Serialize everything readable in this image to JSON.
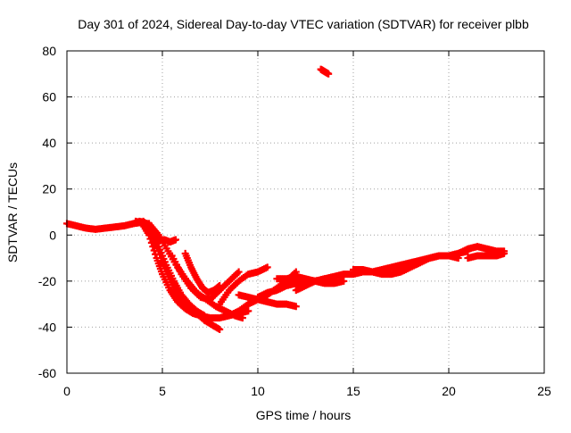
{
  "chart_data": {
    "type": "scatter",
    "title": "Day 301 of 2024, Sidereal Day-to-day VTEC variation (SDTVAR) for receiver plbb",
    "xlabel": "GPS time / hours",
    "ylabel": "SDTVAR / TECUs",
    "xlim": [
      0,
      25
    ],
    "ylim": [
      -60,
      80
    ],
    "xticks": [
      0,
      5,
      10,
      15,
      20,
      25
    ],
    "yticks": [
      -60,
      -40,
      -20,
      0,
      20,
      40,
      60,
      80
    ],
    "grid": true,
    "legend": "none",
    "marker": "plus",
    "color": "#ff0000",
    "series": [
      {
        "name": "track-a",
        "x": [
          0.0,
          0.5,
          1.0,
          1.5,
          2.0,
          2.5,
          3.0,
          3.5,
          3.9,
          4.3,
          4.7,
          5.0,
          5.4,
          5.8,
          6.2,
          6.6,
          7.0,
          7.5,
          8.0,
          8.5,
          9.0,
          9.5
        ],
        "y": [
          5,
          4,
          3,
          2.5,
          3,
          3.5,
          4,
          5,
          5.5,
          0,
          -10,
          -17,
          -24,
          -29,
          -32,
          -34,
          -35,
          -36,
          -36,
          -35,
          -34,
          -33
        ]
      },
      {
        "name": "track-b",
        "x": [
          3.6,
          4.0,
          4.4,
          4.8,
          5.2,
          5.6,
          6.0,
          6.4,
          6.8,
          7.2,
          7.6,
          8.0
        ],
        "y": [
          6,
          5,
          1,
          -7,
          -16,
          -23,
          -28,
          -31,
          -34,
          -37,
          -39,
          -41
        ]
      },
      {
        "name": "track-c",
        "x": [
          4.0,
          4.4,
          4.8,
          5.2,
          5.6,
          6.0,
          6.4,
          6.8,
          7.2
        ],
        "y": [
          6,
          3,
          -5,
          -13,
          -20,
          -26,
          -30,
          -33,
          -35
        ]
      },
      {
        "name": "track-d",
        "x": [
          4.3,
          4.8,
          5.3,
          5.8,
          6.3,
          6.8,
          7.3,
          7.8,
          8.3,
          8.8,
          9.2
        ],
        "y": [
          5,
          0,
          -7,
          -14,
          -20,
          -25,
          -28,
          -31,
          -33,
          -35,
          -36
        ]
      },
      {
        "name": "track-e",
        "x": [
          3.8,
          4.2,
          4.5,
          4.8,
          5.1,
          5.4,
          5.7
        ],
        "y": [
          6,
          5,
          2,
          -2,
          -2,
          -3,
          -2
        ]
      },
      {
        "name": "track-f",
        "x": [
          5.5,
          6.0,
          6.5,
          7.0,
          7.5,
          8.0,
          8.5,
          9.0
        ],
        "y": [
          -9,
          -17,
          -23,
          -27,
          -28,
          -24,
          -20,
          -16
        ]
      },
      {
        "name": "track-g",
        "x": [
          6.2,
          6.5,
          6.8,
          7.1,
          7.4,
          7.7,
          8.0
        ],
        "y": [
          -8,
          -14,
          -19,
          -23,
          -25,
          -24,
          -22
        ]
      },
      {
        "name": "track-h",
        "x": [
          8.5,
          9.0,
          9.5,
          10.0,
          10.5,
          11.0,
          11.5,
          12.0
        ],
        "y": [
          -35,
          -33,
          -30,
          -28,
          -26,
          -23,
          -20,
          -16
        ]
      },
      {
        "name": "track-i",
        "x": [
          8.0,
          8.5,
          9.0,
          9.5,
          10.0,
          10.5
        ],
        "y": [
          -30,
          -24,
          -20,
          -17,
          -16,
          -14
        ]
      },
      {
        "name": "track-j",
        "x": [
          10.0,
          10.5,
          11.0,
          11.5,
          12.0,
          12.5,
          13.0,
          13.5
        ],
        "y": [
          -27,
          -25,
          -24,
          -22,
          -21,
          -20,
          -20,
          -19
        ]
      },
      {
        "name": "track-k",
        "x": [
          9.0,
          9.5,
          10.0,
          10.5,
          11.0,
          11.5,
          12.0
        ],
        "y": [
          -26,
          -27,
          -28,
          -29,
          -30,
          -30,
          -31
        ]
      },
      {
        "name": "track-l",
        "x": [
          12.0,
          12.5,
          13.0,
          13.5,
          14.0,
          14.5,
          15.0,
          15.5,
          16.0,
          16.5,
          17.0,
          17.5,
          18.0,
          18.5,
          19.0,
          19.5,
          20.0,
          20.5,
          21.0
        ],
        "y": [
          -24,
          -22,
          -20,
          -19,
          -18,
          -17,
          -17,
          -16,
          -16,
          -15,
          -14,
          -13,
          -12,
          -11,
          -10,
          -9,
          -9,
          -8,
          -7
        ]
      },
      {
        "name": "track-m",
        "x": [
          11.0,
          11.5,
          12.0,
          12.5,
          13.0,
          13.5,
          14.0,
          14.5
        ],
        "y": [
          -19,
          -19,
          -18,
          -19,
          -20,
          -21,
          -21,
          -20
        ]
      },
      {
        "name": "track-n",
        "x": [
          15.0,
          15.5,
          16.0,
          16.5,
          17.0,
          17.5,
          18.0,
          18.5,
          19.0,
          19.5,
          20.0,
          20.5
        ],
        "y": [
          -15,
          -15,
          -16,
          -17,
          -17,
          -16,
          -14,
          -12,
          -10,
          -9,
          -9,
          -10
        ]
      },
      {
        "name": "track-o",
        "x": [
          20.0,
          20.5,
          21.0,
          21.5,
          22.0,
          22.5,
          22.9
        ],
        "y": [
          -9,
          -8,
          -6,
          -5,
          -6,
          -7,
          -7
        ]
      },
      {
        "name": "track-p",
        "x": [
          21.0,
          21.5,
          22.0,
          22.5,
          22.9
        ],
        "y": [
          -10,
          -9,
          -9,
          -9,
          -8
        ]
      },
      {
        "name": "track-q",
        "x": [
          13.3,
          13.5,
          13.7
        ],
        "y": [
          72,
          71,
          70
        ]
      }
    ]
  }
}
